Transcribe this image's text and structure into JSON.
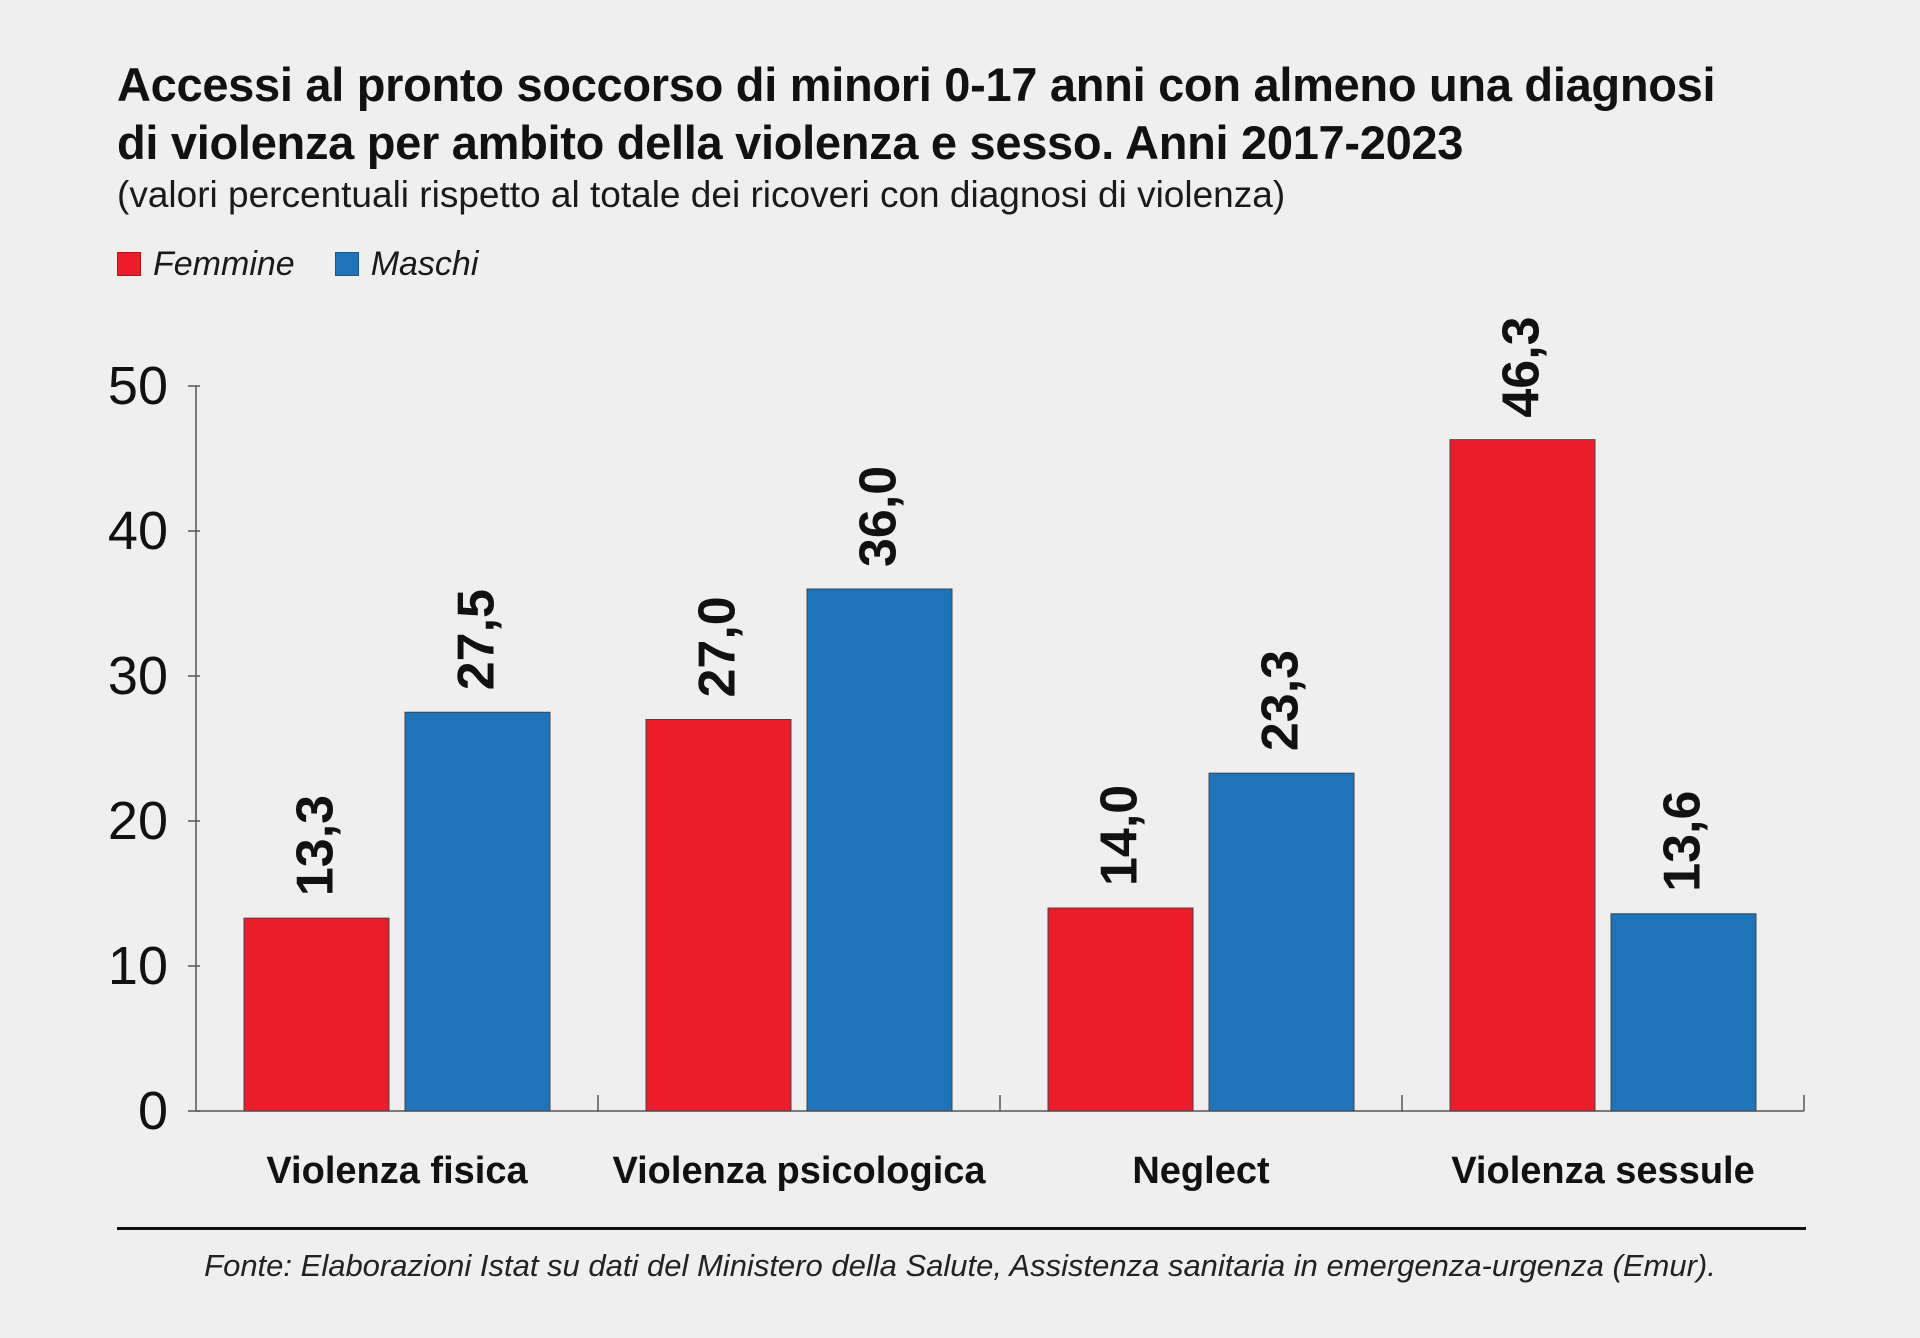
{
  "header": {
    "title_line1": "Accessi al pronto soccorso di minori 0-17 anni con almeno una diagnosi",
    "title_line2": "di violenza per ambito della violenza e sesso. Anni 2017-2023",
    "subtitle": "(valori percentuali rispetto al totale dei ricoveri con diagnosi di violenza)"
  },
  "legend": [
    {
      "label": "Femmine",
      "color": "#ed1c2b"
    },
    {
      "label": "Maschi",
      "color": "#1e73b9"
    }
  ],
  "footer": {
    "source": "Fonte: Elaborazioni Istat su dati del Ministero della Salute, Assistenza sanitaria in emergenza-urgenza (Emur)."
  },
  "chart_data": {
    "type": "bar",
    "title": "Accessi al pronto soccorso di minori 0-17 anni con almeno una diagnosi di violenza per ambito della violenza e sesso. Anni 2017-2023",
    "subtitle": "(valori percentuali rispetto al totale dei ricoveri con diagnosi di violenza)",
    "categories": [
      "Violenza fisica",
      "Violenza psicologica",
      "Neglect",
      "Violenza sessule"
    ],
    "series": [
      {
        "name": "Femmine",
        "color": "#ed1c2b",
        "values": [
          13.3,
          27.0,
          14.0,
          46.3
        ],
        "labels": [
          "13,3",
          "27,0",
          "14,0",
          "46,3"
        ]
      },
      {
        "name": "Maschi",
        "color": "#1e73b9",
        "values": [
          27.5,
          36.0,
          23.3,
          13.6
        ],
        "labels": [
          "27,5",
          "36,0",
          "23,3",
          "13,6"
        ]
      }
    ],
    "yticks": [
      0,
      10,
      20,
      30,
      40,
      50
    ],
    "ylim": [
      0,
      50
    ],
    "xlabel": "",
    "ylabel": "",
    "legend_position": "top-left",
    "grid": false
  }
}
